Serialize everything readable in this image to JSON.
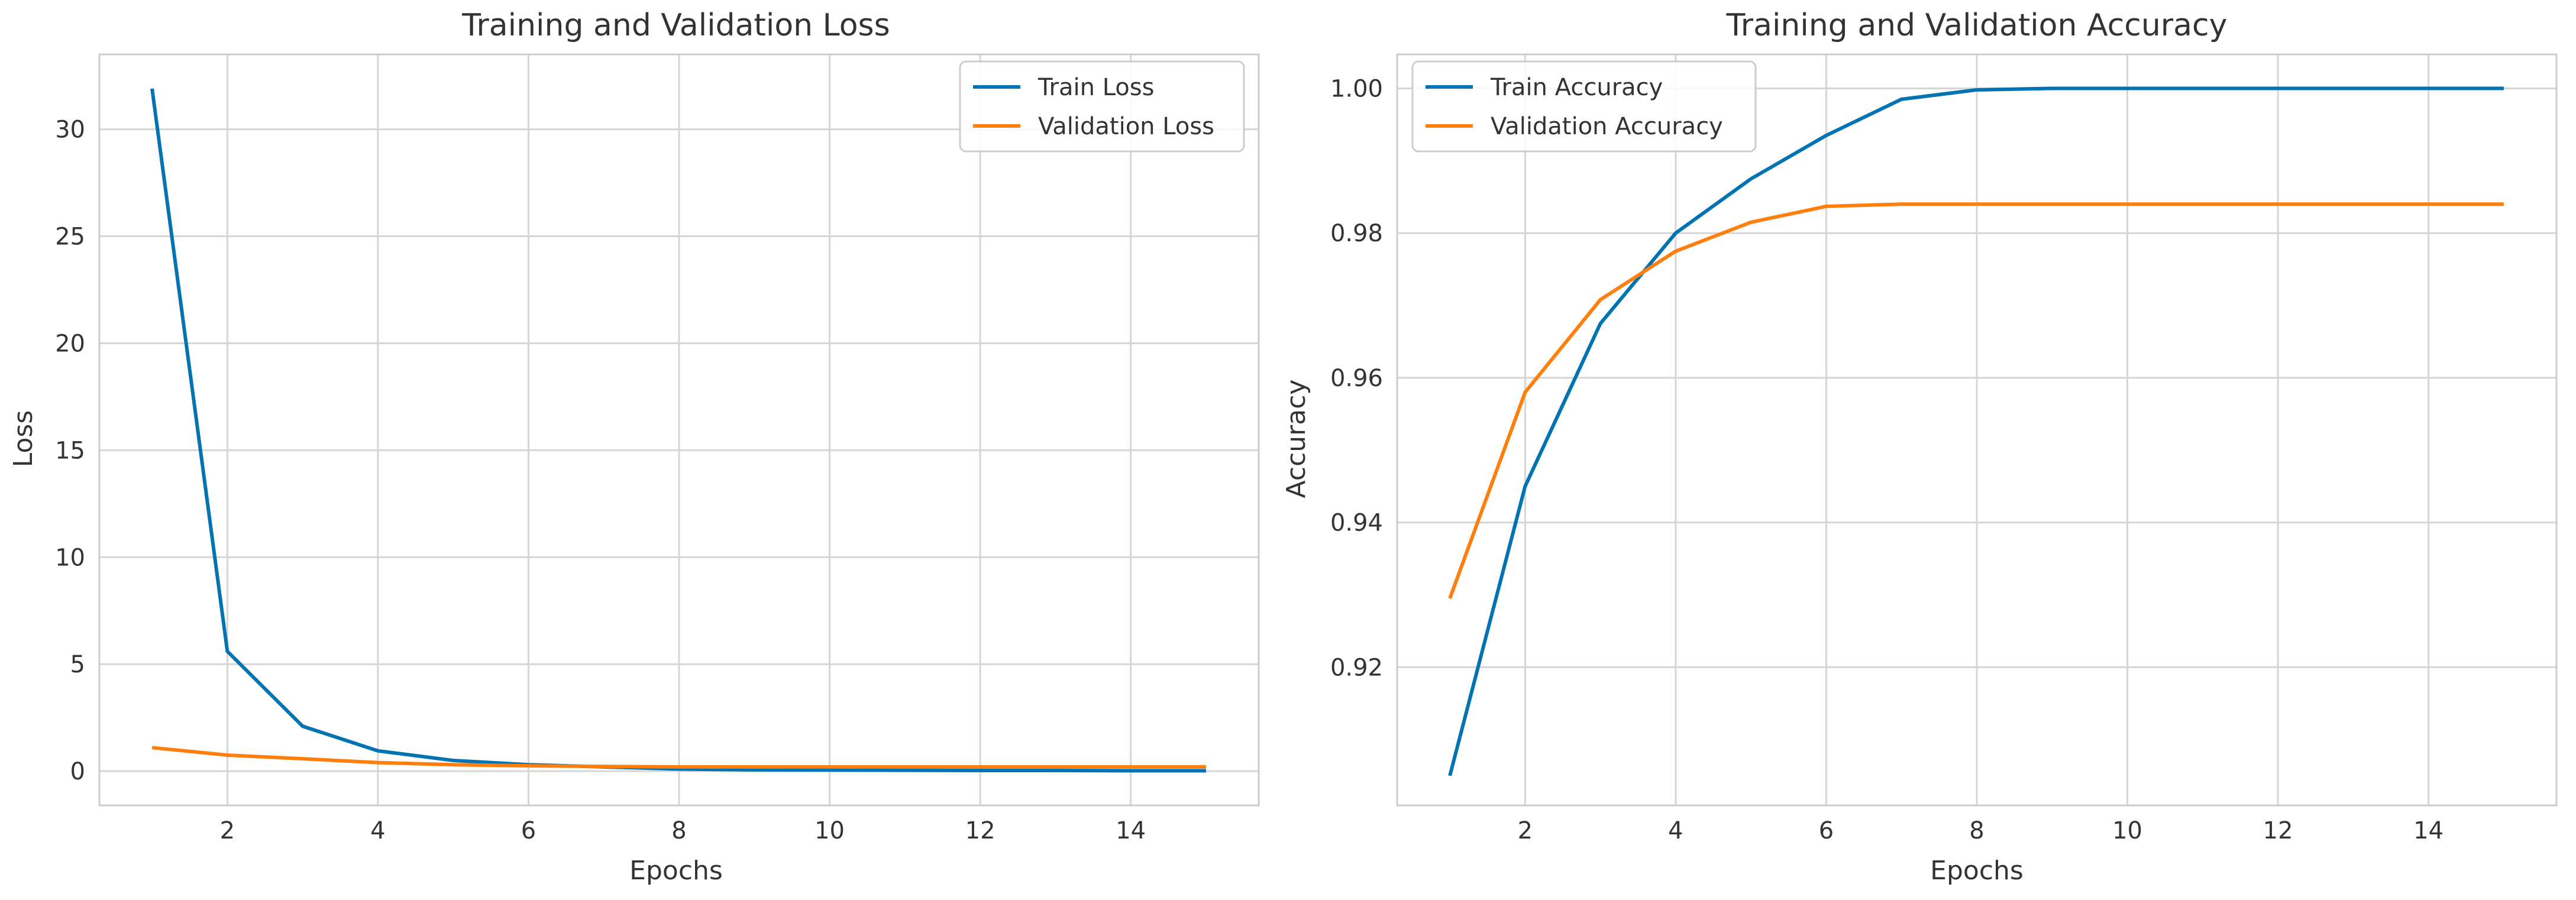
{
  "chart_data": [
    {
      "type": "line",
      "title": "Training and Validation Loss",
      "xlabel": "Epochs",
      "ylabel": "Loss",
      "xlim": [
        0.3,
        15.7
      ],
      "ylim": [
        -1.6,
        33.5
      ],
      "xticks": [
        2,
        4,
        6,
        8,
        10,
        12,
        14
      ],
      "xtick_labels": [
        "2",
        "4",
        "6",
        "8",
        "10",
        "12",
        "14"
      ],
      "yticks": [
        0,
        5,
        10,
        15,
        20,
        25,
        30
      ],
      "ytick_labels": [
        "0",
        "5",
        "10",
        "15",
        "20",
        "25",
        "30"
      ],
      "grid": true,
      "legend_position": "upper right",
      "x": [
        1,
        2,
        3,
        4,
        5,
        6,
        7,
        8,
        9,
        10,
        11,
        12,
        13,
        14,
        15
      ],
      "series": [
        {
          "name": "Train Loss",
          "color": "#0173b2",
          "values": [
            31.9,
            5.6,
            2.1,
            0.95,
            0.5,
            0.3,
            0.2,
            0.1,
            0.06,
            0.05,
            0.04,
            0.03,
            0.03,
            0.02,
            0.02
          ]
        },
        {
          "name": "Validation Loss",
          "color": "#ff7f0e",
          "values": [
            1.1,
            0.75,
            0.58,
            0.4,
            0.3,
            0.25,
            0.22,
            0.2,
            0.2,
            0.2,
            0.2,
            0.2,
            0.2,
            0.2,
            0.2
          ]
        }
      ]
    },
    {
      "type": "line",
      "title": "Training and Validation Accuracy",
      "xlabel": "Epochs",
      "ylabel": "Accuracy",
      "xlim": [
        0.3,
        15.7
      ],
      "ylim": [
        0.9009,
        1.0047
      ],
      "xticks": [
        2,
        4,
        6,
        8,
        10,
        12,
        14
      ],
      "xtick_labels": [
        "2",
        "4",
        "6",
        "8",
        "10",
        "12",
        "14"
      ],
      "yticks": [
        0.92,
        0.94,
        0.96,
        0.98,
        1.0
      ],
      "ytick_labels": [
        "0.92",
        "0.94",
        "0.96",
        "0.98",
        "1.00"
      ],
      "grid": true,
      "legend_position": "upper left",
      "x": [
        1,
        2,
        3,
        4,
        5,
        6,
        7,
        8,
        9,
        10,
        11,
        12,
        13,
        14,
        15
      ],
      "series": [
        {
          "name": "Train Accuracy",
          "color": "#0173b2",
          "values": [
            0.905,
            0.945,
            0.9675,
            0.98,
            0.9875,
            0.9935,
            0.9985,
            0.9998,
            1.0,
            1.0,
            1.0,
            1.0,
            1.0,
            1.0,
            1.0
          ]
        },
        {
          "name": "Validation Accuracy",
          "color": "#ff7f0e",
          "values": [
            0.9295,
            0.958,
            0.9708,
            0.9775,
            0.9815,
            0.9837,
            0.984,
            0.984,
            0.984,
            0.984,
            0.984,
            0.984,
            0.984,
            0.984,
            0.984
          ]
        }
      ]
    }
  ]
}
